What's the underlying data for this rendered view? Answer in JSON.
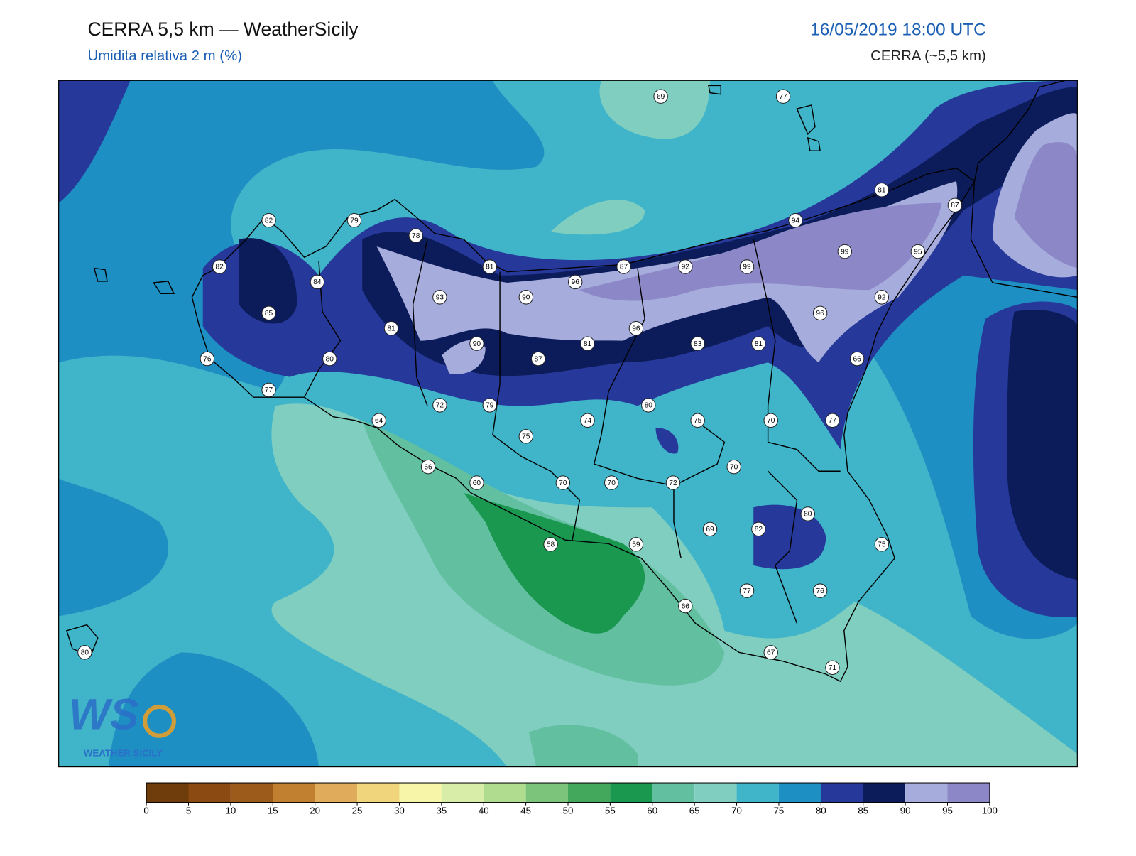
{
  "header": {
    "title": "CERRA 5,5 km — WeatherSicily",
    "subtitle": "Umidita relativa 2 m (%)",
    "datetime": "16/05/2019 18:00 UTC",
    "model": "CERRA (~5,5 km)"
  },
  "map": {
    "station_values": [
      69,
      77,
      82,
      79,
      78,
      82,
      84,
      85,
      81,
      93,
      90,
      96,
      87,
      92,
      99,
      94,
      81,
      87,
      99,
      95,
      92,
      96,
      96,
      83,
      81,
      81,
      90,
      81,
      87,
      76,
      80,
      77,
      66,
      72,
      79,
      80,
      74,
      75,
      70,
      77,
      64,
      75,
      70,
      66,
      60,
      70,
      70,
      72,
      80,
      69,
      82,
      75,
      58,
      59,
      77,
      76,
      66,
      67,
      71,
      80
    ]
  },
  "colorbar": {
    "ticks": [
      0,
      5,
      10,
      15,
      20,
      25,
      30,
      35,
      40,
      45,
      50,
      55,
      60,
      65,
      70,
      75,
      80,
      85,
      90,
      95,
      100
    ],
    "colors": [
      "#6f3c0b",
      "#8a4a12",
      "#9c5a1b",
      "#c08030",
      "#e0ac5c",
      "#f0d57c",
      "#f7f5a8",
      "#d8eda8",
      "#b0dc90",
      "#7cc47c",
      "#44a85c",
      "#1a9850",
      "#62c0a0",
      "#80cec0",
      "#40b4c8",
      "#1e8fc3",
      "#26399a",
      "#0c1c5a",
      "#a6acdc",
      "#8c88c8"
    ]
  },
  "logo": {
    "mark": "WS",
    "text": "Weather Sicily"
  }
}
